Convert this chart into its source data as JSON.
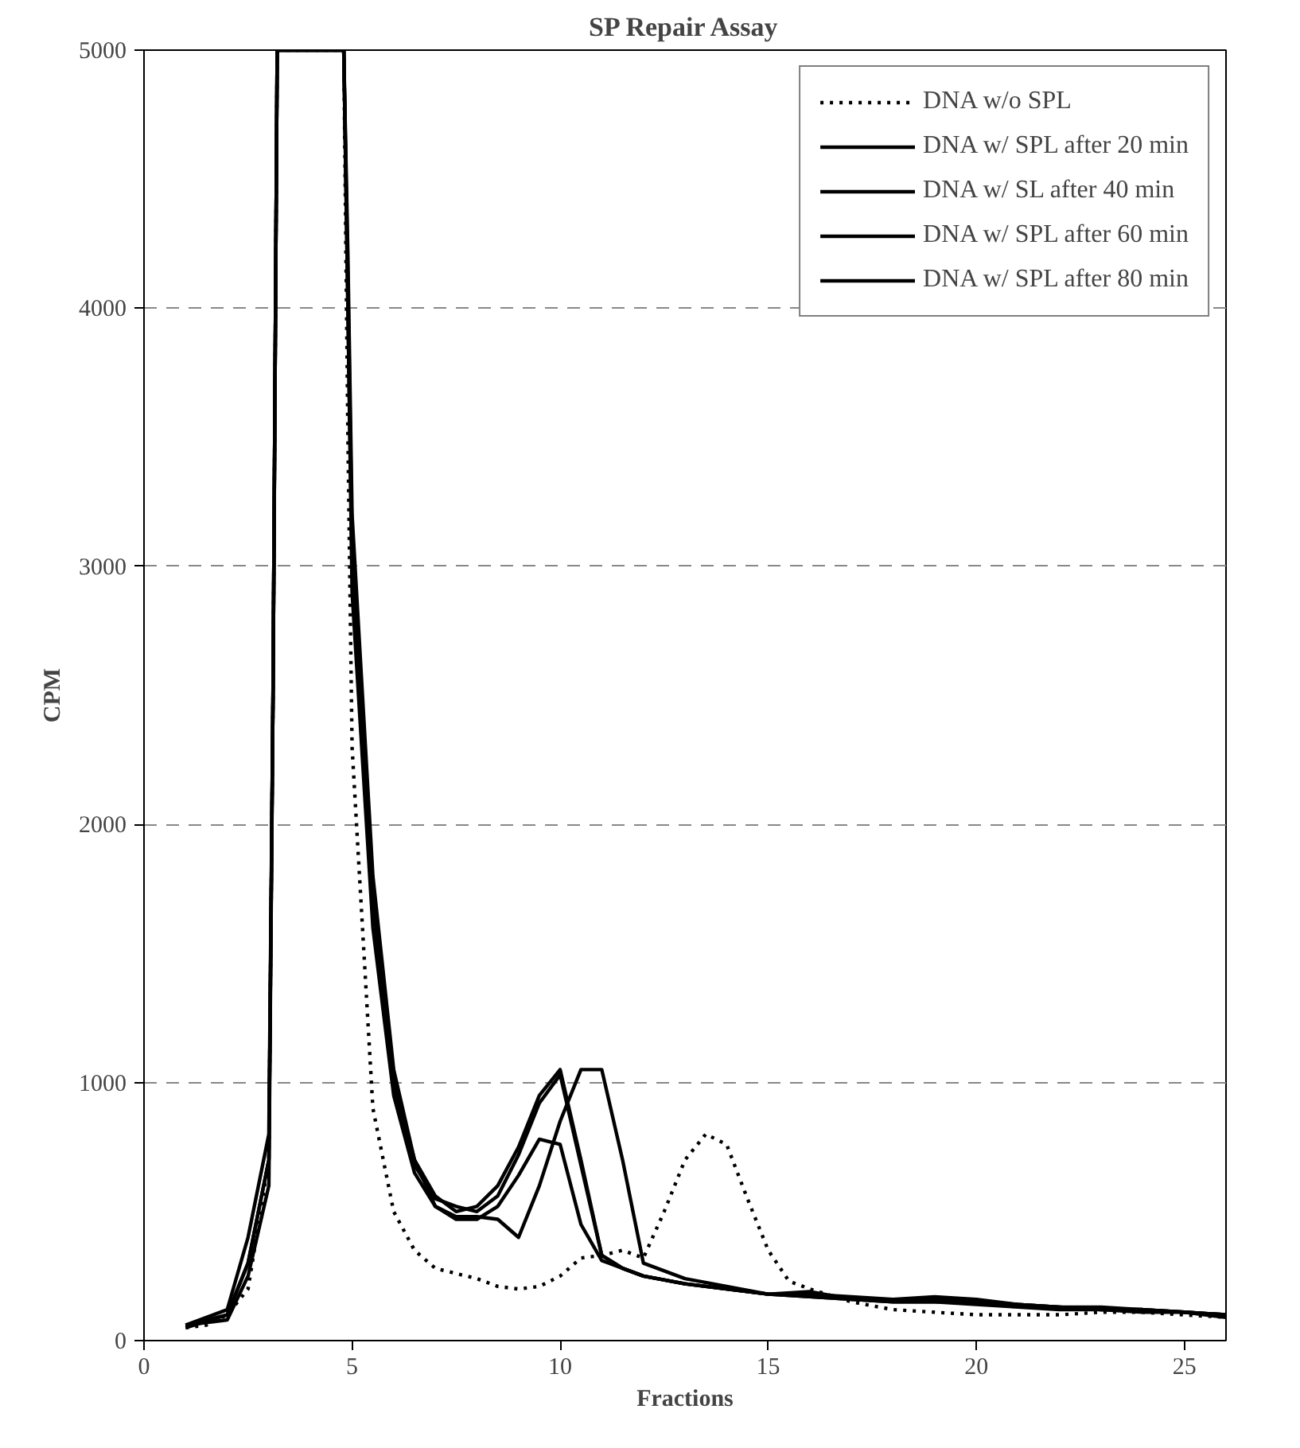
{
  "chart_data": {
    "type": "line",
    "title": "SP Repair Assay",
    "xlabel": "Fractions",
    "ylabel": "CPM",
    "xlim": [
      0,
      26
    ],
    "xticks": [
      0,
      5,
      10,
      15,
      20,
      25
    ],
    "ylim": [
      0,
      5000
    ],
    "yticks": [
      0,
      1000,
      2000,
      3000,
      4000,
      5000
    ],
    "grid": "y",
    "legend": "top right",
    "series": [
      {
        "name": "DNA w/o SPL",
        "color": "#000000",
        "line_style": "dotted",
        "x": [
          1,
          1.5,
          2,
          2.5,
          3,
          3.1,
          3.2,
          4.8,
          4.9,
          5,
          5.5,
          6,
          6.5,
          7,
          7.5,
          8,
          8.5,
          9,
          9.5,
          10,
          10.5,
          11,
          11.5,
          12,
          12.5,
          13,
          13.5,
          14,
          14.5,
          15,
          15.5,
          16,
          17,
          18,
          19,
          20,
          21,
          22,
          23,
          24,
          25,
          26
        ],
        "values": [
          50,
          60,
          100,
          200,
          700,
          2500,
          5000,
          5000,
          3500,
          2300,
          900,
          500,
          350,
          280,
          260,
          240,
          210,
          200,
          210,
          250,
          320,
          330,
          350,
          320,
          500,
          700,
          800,
          760,
          550,
          350,
          230,
          200,
          150,
          120,
          110,
          100,
          100,
          100,
          110,
          110,
          100,
          90
        ]
      },
      {
        "name": "DNA w/ SPL after 20 min",
        "color": "#000000",
        "line_style": "solid",
        "x": [
          1,
          2,
          2.5,
          3,
          3.1,
          3.2,
          4.8,
          4.9,
          5,
          5.5,
          6,
          6.5,
          7,
          7.5,
          8,
          8.5,
          9,
          9.5,
          10,
          10.5,
          11,
          11.5,
          12,
          13,
          14,
          15,
          16,
          17,
          18,
          19,
          20,
          21,
          22,
          23,
          24,
          25,
          26
        ],
        "values": [
          60,
          100,
          300,
          700,
          2500,
          5000,
          5000,
          4000,
          3000,
          1700,
          1000,
          700,
          560,
          500,
          520,
          600,
          750,
          950,
          1050,
          700,
          330,
          280,
          250,
          220,
          200,
          180,
          170,
          160,
          150,
          150,
          150,
          140,
          130,
          120,
          120,
          110,
          100
        ]
      },
      {
        "name": "DNA w/ SL after 40 min",
        "color": "#000000",
        "line_style": "solid",
        "x": [
          1,
          2,
          2.5,
          3,
          3.1,
          3.2,
          4.8,
          4.9,
          5,
          5.5,
          6,
          6.5,
          7,
          7.5,
          8,
          8.5,
          9,
          9.5,
          10,
          10.5,
          11,
          11.5,
          12,
          13,
          14,
          15,
          16,
          17,
          18,
          19,
          20,
          21,
          22,
          23,
          24,
          25,
          26
        ],
        "values": [
          60,
          120,
          400,
          800,
          2500,
          5000,
          5000,
          4000,
          2900,
          1600,
          950,
          650,
          520,
          470,
          470,
          520,
          640,
          780,
          760,
          450,
          310,
          280,
          250,
          220,
          200,
          180,
          170,
          160,
          150,
          150,
          140,
          130,
          120,
          120,
          110,
          110,
          100
        ]
      },
      {
        "name": "DNA w/ SPL after 60 min",
        "color": "#000000",
        "line_style": "solid",
        "x": [
          1,
          2,
          2.5,
          3,
          3.1,
          3.2,
          4.8,
          4.9,
          5,
          5.5,
          6,
          6.5,
          7,
          7.5,
          8,
          8.5,
          9,
          9.5,
          10,
          10.5,
          11,
          11.5,
          12,
          13,
          14,
          15,
          16,
          17,
          18,
          19,
          20,
          21,
          22,
          23,
          24,
          25,
          26
        ],
        "values": [
          50,
          100,
          300,
          700,
          2500,
          5000,
          5000,
          4100,
          3100,
          1750,
          1000,
          680,
          550,
          520,
          500,
          560,
          720,
          920,
          1030,
          680,
          330,
          280,
          250,
          220,
          200,
          180,
          180,
          170,
          160,
          170,
          160,
          140,
          130,
          120,
          120,
          110,
          100
        ]
      },
      {
        "name": "DNA w/ SPL after 80 min",
        "color": "#000000",
        "line_style": "solid",
        "x": [
          1,
          2,
          2.5,
          3,
          3.1,
          3.2,
          4.8,
          4.9,
          5,
          5.5,
          6,
          6.5,
          7,
          7.5,
          8,
          8.5,
          9,
          9.5,
          10,
          10.5,
          11,
          11.5,
          12,
          13,
          14,
          15,
          16,
          17,
          18,
          19,
          20,
          21,
          22,
          23,
          24,
          25,
          26
        ],
        "values": [
          60,
          80,
          250,
          600,
          2500,
          5000,
          5000,
          4200,
          3200,
          1800,
          1050,
          700,
          520,
          480,
          480,
          470,
          400,
          600,
          850,
          1050,
          1050,
          700,
          300,
          240,
          210,
          180,
          190,
          160,
          160,
          160,
          150,
          140,
          130,
          130,
          120,
          110,
          90
        ]
      }
    ]
  }
}
